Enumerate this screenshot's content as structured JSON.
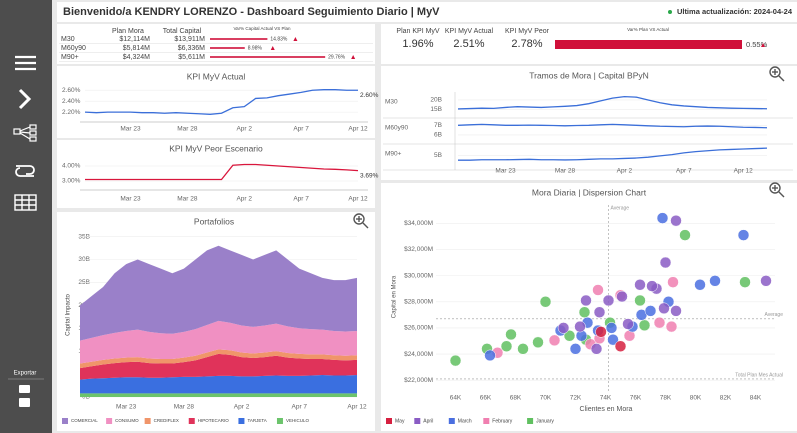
{
  "header": {
    "title": "Bienvenido/a KENDRY LORENZO - Dashboard Seguimiento Diario | MyV",
    "update": "Ultima actualización: 2024-04-24"
  },
  "sidebar": {
    "export": "Exportar"
  },
  "summary_table": {
    "columns": [
      "Plan Mora",
      "Total Capital",
      "Var% Capital Actual VS Plan"
    ],
    "rows": [
      {
        "name": "M30",
        "plan": "$12,114M",
        "total": "$13,911M"
      },
      {
        "name": "M60y90",
        "plan": "$5,814M",
        "total": "$6,336M"
      },
      {
        "name": "M90+",
        "plan": "$4,324M",
        "total": "$5,611M"
      }
    ],
    "var_values": [
      14.83,
      8.98,
      29.76
    ],
    "var_labels": [
      "14.83%",
      "8.98%",
      "29.76%"
    ],
    "color": "#d0103a"
  },
  "kpis": {
    "columns": [
      "Plan KPI MyV",
      "KPI MyV Actual",
      "KPI MyV Peor",
      "Var% Plan VS Actual"
    ],
    "values": [
      "1.96%",
      "2.51%",
      "2.78%"
    ],
    "var_value": 0.55,
    "var_label": "0.55%",
    "color": "#d0103a"
  },
  "chart_data": [
    {
      "type": "line",
      "title": "KPI MyV Actual",
      "color": "#3b6fd9",
      "grid": true,
      "categories": [
        null,
        null,
        null,
        null,
        "Mar 23",
        null,
        null,
        null,
        null,
        "Mar 28",
        null,
        null,
        null,
        null,
        "Apr 2",
        null,
        null,
        null,
        null,
        "Apr 7",
        null,
        null,
        null,
        null,
        "Apr 12"
      ],
      "values": [
        2.2,
        2.19,
        2.2,
        2.2,
        2.2,
        2.19,
        2.19,
        2.18,
        2.19,
        2.18,
        2.17,
        2.16,
        2.18,
        2.28,
        2.3,
        2.45,
        2.46,
        2.5,
        2.53,
        2.56,
        2.6,
        2.61,
        2.61,
        2.6,
        2.6
      ],
      "value_labels": [
        null,
        null,
        null,
        null,
        null,
        null,
        null,
        null,
        null,
        null,
        null,
        null,
        null,
        null,
        null,
        null,
        null,
        null,
        null,
        null,
        null,
        null,
        null,
        null,
        "2.60%"
      ],
      "ylim": [
        2.02,
        2.75
      ],
      "yticks": [
        {
          "value": 2.2,
          "label": "2.20%"
        },
        {
          "value": 2.4,
          "label": "2.40%"
        },
        {
          "value": 2.6,
          "label": "2.60%"
        }
      ]
    },
    {
      "type": "line",
      "title": "KPI MyV Peor Escenario",
      "color": "#d9163c",
      "grid": true,
      "categories": [
        null,
        null,
        null,
        null,
        "Mar 23",
        null,
        null,
        null,
        null,
        "Mar 28",
        null,
        null,
        null,
        null,
        "Apr 2",
        null,
        null,
        null,
        null,
        "Apr 7",
        null,
        null,
        null,
        null,
        "Apr 12"
      ],
      "values": [
        3.1,
        3.1,
        3.1,
        3.1,
        3.1,
        3.1,
        3.1,
        3.1,
        3.1,
        3.1,
        3.1,
        3.1,
        3.1,
        4.05,
        4.1,
        4.1,
        4.05,
        4.0,
        3.95,
        3.9,
        3.85,
        3.8,
        3.78,
        3.74,
        3.69
      ],
      "value_labels": [
        null,
        null,
        null,
        null,
        null,
        null,
        null,
        null,
        null,
        null,
        null,
        null,
        null,
        null,
        null,
        null,
        null,
        null,
        null,
        null,
        null,
        null,
        null,
        null,
        "3.69%"
      ],
      "ylim": [
        2.4,
        4.6
      ],
      "yticks": [
        {
          "value": 3,
          "label": "3.00%"
        },
        {
          "value": 4,
          "label": "4.00%"
        }
      ]
    },
    {
      "type": "area",
      "stacked": true,
      "title": "Portafolios",
      "y_label": "Capital Impacto",
      "grid": true,
      "categories": [
        null,
        null,
        null,
        null,
        "Mar 23",
        null,
        null,
        null,
        null,
        "Mar 28",
        null,
        null,
        null,
        null,
        "Apr 2",
        null,
        null,
        null,
        null,
        "Apr 7",
        null,
        null,
        null,
        null,
        "Apr 12"
      ],
      "series": [
        {
          "name": "COMERCIAL",
          "color": "#9a80c9",
          "values": [
            7.7,
            9.1,
            10.5,
            13,
            14.6,
            15.3,
            14.8,
            14.1,
            13.2,
            13.8,
            15.2,
            16.3,
            16.4,
            15.8,
            15.4,
            14.7,
            15.4,
            16,
            14.6,
            13,
            12.2,
            11.3,
            11.1,
            11.2,
            11.6
          ]
        },
        {
          "name": "CONSUMO",
          "color": "#f090c2",
          "values": [
            5,
            5.2,
            5.4,
            5.6,
            5.8,
            6,
            5.8,
            5.6,
            5.5,
            5.6,
            5.8,
            6,
            6.2,
            6,
            5.9,
            5.8,
            5.9,
            6,
            5.8,
            5.6,
            5.5,
            5.4,
            5.3,
            5.3,
            5.3
          ]
        },
        {
          "name": "CREDIFLEX",
          "color": "#f0956a",
          "values": [
            1,
            1,
            1,
            1,
            1,
            1,
            1,
            1,
            1,
            1,
            1,
            1,
            1,
            1,
            1,
            1,
            1,
            1,
            1,
            1,
            1,
            1,
            1,
            1,
            1
          ]
        },
        {
          "name": "HIPOTECARIO",
          "color": "#e0335a",
          "values": [
            2.5,
            2.7,
            3,
            3.2,
            3.3,
            3.4,
            3.2,
            3.1,
            3,
            3.2,
            3.6,
            4.2,
            4.8,
            4.6,
            4.2,
            4,
            4.1,
            4.3,
            4,
            3.8,
            3.6,
            3.5,
            3.4,
            3.3,
            3.3
          ]
        },
        {
          "name": "TARJETA",
          "color": "#3a6fe0",
          "values": [
            3,
            3.2,
            3.3,
            3.4,
            3.5,
            3.5,
            3.4,
            3.4,
            3.5,
            3.6,
            3.6,
            3.7,
            3.8,
            3.8,
            3.7,
            3.7,
            3.8,
            3.9,
            3.8,
            3.8,
            3.9,
            4,
            3.9,
            3.9,
            4
          ]
        },
        {
          "name": "VEHICULO",
          "color": "#6cc46c",
          "values": [
            0.8,
            0.8,
            0.8,
            0.8,
            0.8,
            0.8,
            0.8,
            0.8,
            0.8,
            0.8,
            0.8,
            0.8,
            0.8,
            0.8,
            0.8,
            0.8,
            0.8,
            0.8,
            0.8,
            0.8,
            0.8,
            0.8,
            0.8,
            0.8,
            0.8
          ]
        }
      ],
      "ylim": [
        0,
        36
      ],
      "yticks": [
        {
          "value": 0,
          "label": "0B"
        },
        {
          "value": 5,
          "label": "5B"
        },
        {
          "value": 10,
          "label": "10B"
        },
        {
          "value": 15,
          "label": "15B"
        },
        {
          "value": 20,
          "label": "20B"
        },
        {
          "value": 25,
          "label": "25B"
        },
        {
          "value": 30,
          "label": "30B"
        },
        {
          "value": 35,
          "label": "35B"
        }
      ]
    },
    {
      "type": "panels",
      "title": "Tramos de Mora | Capital BPyN",
      "color": "#3b6fd9",
      "grid": true,
      "categories": [
        null,
        null,
        null,
        null,
        "Mar 23",
        null,
        null,
        null,
        null,
        "Mar 28",
        null,
        null,
        null,
        null,
        "Apr 2",
        null,
        null,
        null,
        null,
        "Apr 7",
        null,
        null,
        null,
        null,
        "Apr 12",
        null,
        null
      ],
      "panels": [
        {
          "name": "M30",
          "ylim": [
            11.4,
            23.2
          ],
          "yticks": [
            {
              "value": 15,
              "label": "15B"
            },
            {
              "value": 20,
              "label": "20B"
            }
          ],
          "values": [
            15.2,
            15.4,
            15.6,
            15.5,
            16.0,
            16.4,
            16.2,
            16.0,
            16.3,
            16.6,
            17.0,
            18.0,
            19.5,
            21.0,
            21.8,
            21.5,
            20.0,
            18.5,
            17.4,
            16.8,
            16.4,
            16.0,
            15.8,
            15.6,
            15.5,
            15.4,
            15.3
          ]
        },
        {
          "name": "M60y90",
          "ylim": [
            5.27,
            7.55
          ],
          "yticks": [
            {
              "value": 6,
              "label": "6B"
            },
            {
              "value": 7,
              "label": "7B"
            }
          ],
          "values": [
            7.0,
            7.05,
            7.1,
            7.05,
            7.0,
            7.0,
            7.02,
            7.0,
            6.98,
            6.95,
            6.98,
            7.0,
            7.05,
            7.1,
            7.05,
            7.0,
            6.95,
            6.9,
            6.88,
            6.85,
            6.9,
            6.92,
            6.9,
            6.85,
            6.8,
            6.78,
            6.75
          ]
        },
        {
          "name": "M90+",
          "ylim": [
            3.54,
            6.1
          ],
          "yticks": [
            {
              "value": 5,
              "label": "5B"
            }
          ],
          "values": [
            4.45,
            4.45,
            4.5,
            4.5,
            4.5,
            4.52,
            4.55,
            4.5,
            4.5,
            4.48,
            4.5,
            4.55,
            4.6,
            4.6,
            4.65,
            4.7,
            4.8,
            4.95,
            5.1,
            5.3,
            5.45,
            5.55,
            5.65,
            5.7,
            5.75,
            5.8,
            5.85
          ]
        }
      ]
    },
    {
      "type": "scatter",
      "title": "Mora Diaria | Dispersion Chart",
      "x_label": "Clientes en Mora",
      "y_label": "Capital en Mora",
      "grid": true,
      "xlim": [
        62700,
        85300
      ],
      "ylim": [
        21100,
        35400
      ],
      "xticks": [
        {
          "value": 64000,
          "label": "64K"
        },
        {
          "value": 66000,
          "label": "66K"
        },
        {
          "value": 68000,
          "label": "68K"
        },
        {
          "value": 70000,
          "label": "70K"
        },
        {
          "value": 72000,
          "label": "72K"
        },
        {
          "value": 74000,
          "label": "74K"
        },
        {
          "value": 76000,
          "label": "76K"
        },
        {
          "value": 78000,
          "label": "78K"
        },
        {
          "value": 80000,
          "label": "80K"
        },
        {
          "value": 82000,
          "label": "82K"
        },
        {
          "value": 84000,
          "label": "84K"
        }
      ],
      "yticks": [
        {
          "value": 22000,
          "label": "$22,000M"
        },
        {
          "value": 24000,
          "label": "$24,000M"
        },
        {
          "value": 26000,
          "label": "$26,000M"
        },
        {
          "value": 28000,
          "label": "$28,000M"
        },
        {
          "value": 30000,
          "label": "$30,000M"
        },
        {
          "value": 32000,
          "label": "$32,000M"
        },
        {
          "value": 34000,
          "label": "$34,000M"
        }
      ],
      "reference_lines": [
        {
          "axis": "x",
          "value": 74200,
          "label": "Average"
        },
        {
          "axis": "y",
          "value": 26700,
          "label": "Average"
        },
        {
          "axis": "y",
          "value": 22100,
          "label": "Total Plan Mes Actual"
        }
      ],
      "series": [
        {
          "name": "May",
          "color": "#d62040",
          "x": [
            73700,
            75000
          ],
          "y": [
            25700,
            24600
          ]
        },
        {
          "name": "April",
          "color": "#8a5cc4",
          "x": [
            71200,
            72700,
            73600,
            74200,
            75100,
            75500,
            76300,
            77400,
            78000,
            77900,
            78700,
            84700,
            78700,
            73400,
            72300,
            77100
          ],
          "y": [
            26000,
            28100,
            27200,
            28100,
            28400,
            26300,
            29300,
            29000,
            31000,
            27500,
            27300,
            29600,
            34200,
            24400,
            26100,
            29200
          ]
        },
        {
          "name": "March",
          "color": "#4a6fe0",
          "x": [
            66300,
            71000,
            72000,
            72800,
            73500,
            74400,
            75800,
            76400,
            77000,
            78200,
            77800,
            80300,
            81300,
            83200,
            74500,
            72400
          ],
          "y": [
            23900,
            25800,
            24400,
            26400,
            25800,
            26000,
            26100,
            27000,
            27300,
            28000,
            34400,
            29300,
            29600,
            33100,
            25100,
            25400
          ]
        },
        {
          "name": "February",
          "color": "#f07fb0",
          "x": [
            66800,
            70600,
            73000,
            73500,
            75000,
            75600,
            78500,
            78400,
            73600,
            77600
          ],
          "y": [
            24100,
            25050,
            24750,
            28900,
            28500,
            25400,
            29500,
            26100,
            25200,
            26400
          ]
        },
        {
          "name": "January",
          "color": "#60c060",
          "x": [
            64000,
            66100,
            67400,
            68500,
            69500,
            67700,
            70000,
            71600,
            72700,
            74300,
            76300,
            76600,
            79300,
            83300,
            72600
          ],
          "y": [
            23500,
            24400,
            24600,
            24400,
            24900,
            25500,
            28000,
            25400,
            25100,
            26400,
            28100,
            26200,
            33100,
            29500,
            27200
          ]
        }
      ]
    }
  ]
}
